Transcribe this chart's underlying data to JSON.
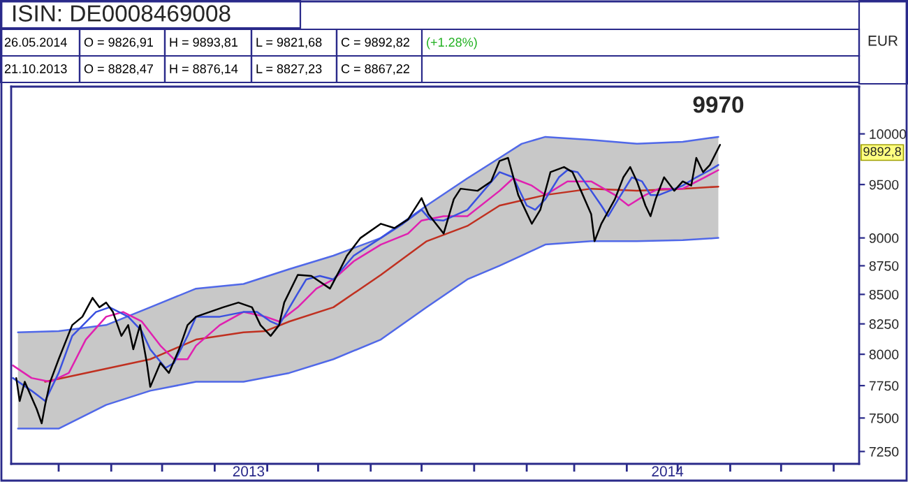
{
  "chart_data": {
    "type": "line",
    "title": "ISIN: DE0008469008",
    "ylabel": "EUR",
    "log": "y",
    "xlim": [
      "2013-04-03",
      "2014-08-16"
    ],
    "ylim": [
      7160,
      10490
    ],
    "yticks": [
      7250,
      7500,
      7750,
      8000,
      8250,
      8500,
      8750,
      9000,
      9500,
      10000
    ],
    "xticks": [
      {
        "value": "2013-05-01",
        "label": null
      },
      {
        "value": "2013-06-01",
        "label": null
      },
      {
        "value": "2013-07-01",
        "label": null
      },
      {
        "value": "2013-08-01",
        "label": null
      },
      {
        "value": "2013-09-01",
        "label": null
      },
      {
        "value": "2013-10-01",
        "label": null
      },
      {
        "value": "2013-11-01",
        "label": null
      },
      {
        "value": "2013-12-01",
        "label": null
      },
      {
        "value": "2014-01-01",
        "label": null
      },
      {
        "value": "2014-02-01",
        "label": null
      },
      {
        "value": "2014-03-01",
        "label": null
      },
      {
        "value": "2014-04-01",
        "label": null
      },
      {
        "value": "2014-05-01",
        "label": null
      },
      {
        "value": "2014-06-01",
        "label": null
      },
      {
        "value": "2014-07-01",
        "label": null
      },
      {
        "value": "2014-08-01",
        "label": null
      },
      {
        "value": "2013-08-21",
        "label": "2013"
      },
      {
        "value": "2014-04-25",
        "label": "2014"
      }
    ],
    "series": [
      {
        "color": "#5068e8",
        "x": [
          "2013-04-07",
          "2013-05-01",
          "2013-05-29",
          "2013-06-24",
          "2013-07-21",
          "2013-08-18",
          "2013-09-14",
          "2013-10-10",
          "2013-11-07",
          "2013-12-04",
          "2013-12-28",
          "2014-01-16",
          "2014-01-29",
          "2014-02-12",
          "2014-03-11",
          "2014-04-07",
          "2014-05-04",
          "2014-05-25"
        ],
        "values": [
          8180,
          8190,
          8240,
          8390,
          8550,
          8590,
          8720,
          8840,
          9000,
          9300,
          9560,
          9760,
          9900,
          9970,
          9940,
          9900,
          9920,
          9970
        ],
        "lower": [
          7420,
          7420,
          7600,
          7710,
          7780,
          7780,
          7850,
          7960,
          8120,
          8390,
          8630,
          8750,
          8840,
          8940,
          8970,
          8970,
          8980,
          9000
        ],
        "upper": [
          8180,
          8190,
          8240,
          8390,
          8550,
          8590,
          8720,
          8840,
          9000,
          9300,
          9560,
          9760,
          9900,
          9970,
          9940,
          9900,
          9920,
          9970
        ]
      },
      {
        "color": "#5068e8",
        "x": [
          "2013-04-07",
          "2013-05-01",
          "2013-05-29",
          "2013-06-24",
          "2013-07-21",
          "2013-08-18",
          "2013-09-14",
          "2013-10-10",
          "2013-11-07",
          "2013-12-04",
          "2013-12-28",
          "2014-01-16",
          "2014-01-29",
          "2014-02-12",
          "2014-03-11",
          "2014-04-07",
          "2014-05-04",
          "2014-05-25"
        ],
        "values": [
          7420,
          7420,
          7600,
          7710,
          7780,
          7780,
          7850,
          7960,
          8120,
          8390,
          8630,
          8750,
          8840,
          8940,
          8970,
          8970,
          8980,
          9000
        ]
      },
      {
        "color": "#c03020",
        "x": [
          "2013-04-23",
          "2013-06-24",
          "2013-07-21",
          "2013-08-18",
          "2013-08-31",
          "2013-09-14",
          "2013-10-10",
          "2013-11-07",
          "2013-12-04",
          "2013-12-28",
          "2014-01-16",
          "2014-02-12",
          "2014-03-11",
          "2014-04-07",
          "2014-05-04",
          "2014-05-25"
        ],
        "values": [
          7780,
          7960,
          8120,
          8180,
          8190,
          8270,
          8390,
          8670,
          8970,
          9110,
          9300,
          9400,
          9460,
          9440,
          9460,
          9480
        ]
      },
      {
        "color": "#e020b0",
        "x": [
          "2013-04-04",
          "2013-04-15",
          "2013-04-26",
          "2013-05-07",
          "2013-05-17",
          "2013-05-29",
          "2013-06-08",
          "2013-06-19",
          "2013-06-30",
          "2013-07-08",
          "2013-07-16",
          "2013-07-21",
          "2013-08-04",
          "2013-08-18",
          "2013-08-31",
          "2013-09-08",
          "2013-09-19",
          "2013-09-30",
          "2013-10-10",
          "2013-10-22",
          "2013-11-07",
          "2013-11-23",
          "2013-12-01",
          "2013-12-14",
          "2013-12-28",
          "2014-01-16",
          "2014-01-24",
          "2014-02-04",
          "2014-02-12",
          "2014-02-25",
          "2014-03-11",
          "2014-03-25",
          "2014-04-02",
          "2014-04-12",
          "2014-04-20",
          "2014-05-04",
          "2014-05-17",
          "2014-05-25"
        ],
        "values": [
          7910,
          7810,
          7780,
          7850,
          8120,
          8310,
          8350,
          8270,
          8070,
          7960,
          7960,
          8070,
          8240,
          8350,
          8310,
          8270,
          8390,
          8550,
          8630,
          8790,
          8940,
          9040,
          9160,
          9200,
          9200,
          9440,
          9560,
          9490,
          9400,
          9530,
          9530,
          9400,
          9300,
          9400,
          9460,
          9460,
          9570,
          9640
        ]
      },
      {
        "color": "#3a50e0",
        "x": [
          "2013-04-04",
          "2013-04-15",
          "2013-04-23",
          "2013-05-01",
          "2013-05-09",
          "2013-05-23",
          "2013-05-31",
          "2013-06-11",
          "2013-06-19",
          "2013-06-24",
          "2013-07-03",
          "2013-07-08",
          "2013-07-16",
          "2013-07-21",
          "2013-08-04",
          "2013-08-18",
          "2013-08-26",
          "2013-09-03",
          "2013-09-08",
          "2013-09-19",
          "2013-09-24",
          "2013-10-02",
          "2013-10-10",
          "2013-10-22",
          "2013-11-07",
          "2013-11-20",
          "2013-12-01",
          "2013-12-06",
          "2013-12-14",
          "2013-12-28",
          "2014-01-16",
          "2014-01-24",
          "2014-02-01",
          "2014-02-06",
          "2014-02-12",
          "2014-02-20",
          "2014-02-25",
          "2014-03-03",
          "2014-03-11",
          "2014-03-17",
          "2014-03-21",
          "2014-03-27",
          "2014-04-04",
          "2014-04-10",
          "2014-04-15",
          "2014-04-20",
          "2014-05-04",
          "2014-05-12",
          "2014-05-20",
          "2014-05-25"
        ],
        "values": [
          7810,
          7710,
          7630,
          7850,
          8150,
          8350,
          8390,
          8310,
          8190,
          8040,
          7890,
          7930,
          8150,
          8310,
          8310,
          8350,
          8350,
          8270,
          8240,
          8510,
          8630,
          8660,
          8630,
          8840,
          9000,
          9130,
          9260,
          9170,
          9160,
          9260,
          9620,
          9570,
          9300,
          9260,
          9360,
          9570,
          9640,
          9620,
          9440,
          9300,
          9200,
          9360,
          9570,
          9530,
          9400,
          9400,
          9490,
          9570,
          9640,
          9690
        ]
      },
      {
        "color": "#000000",
        "x": [
          "2013-04-06",
          "2013-04-08",
          "2013-04-11",
          "2013-04-18",
          "2013-04-21",
          "2013-04-23",
          "2013-04-26",
          "2013-05-01",
          "2013-05-09",
          "2013-05-15",
          "2013-05-21",
          "2013-05-25",
          "2013-05-29",
          "2013-06-02",
          "2013-06-07",
          "2013-06-11",
          "2013-06-14",
          "2013-06-18",
          "2013-06-22",
          "2013-06-24",
          "2013-06-30",
          "2013-07-05",
          "2013-07-11",
          "2013-07-16",
          "2013-07-21",
          "2013-07-29",
          "2013-08-06",
          "2013-08-15",
          "2013-08-23",
          "2013-08-28",
          "2013-09-03",
          "2013-09-08",
          "2013-09-11",
          "2013-09-19",
          "2013-09-27",
          "2013-10-08",
          "2013-10-14",
          "2013-10-18",
          "2013-10-26",
          "2013-11-07",
          "2013-11-15",
          "2013-11-23",
          "2013-12-01",
          "2013-12-05",
          "2013-12-14",
          "2013-12-20",
          "2013-12-24",
          "2014-01-03",
          "2014-01-11",
          "2014-01-16",
          "2014-01-21",
          "2014-01-27",
          "2014-02-04",
          "2014-02-09",
          "2014-02-15",
          "2014-02-23",
          "2014-02-28",
          "2014-03-05",
          "2014-03-11",
          "2014-03-13",
          "2014-03-17",
          "2014-03-25",
          "2014-03-30",
          "2014-04-03",
          "2014-04-07",
          "2014-04-12",
          "2014-04-15",
          "2014-04-18",
          "2014-04-23",
          "2014-04-29",
          "2014-05-04",
          "2014-05-09",
          "2014-05-12",
          "2014-05-16",
          "2014-05-20",
          "2014-05-26"
        ],
        "values": [
          7810,
          7630,
          7780,
          7570,
          7460,
          7600,
          7780,
          7960,
          8240,
          8310,
          8470,
          8390,
          8430,
          8350,
          8150,
          8240,
          8040,
          8240,
          7930,
          7740,
          7930,
          7850,
          8040,
          8240,
          8310,
          8350,
          8390,
          8430,
          8390,
          8240,
          8150,
          8240,
          8430,
          8670,
          8660,
          8550,
          8720,
          8840,
          9000,
          9130,
          9090,
          9170,
          9370,
          9220,
          9040,
          9360,
          9460,
          9440,
          9530,
          9730,
          9760,
          9400,
          9130,
          9260,
          9620,
          9670,
          9620,
          9440,
          9220,
          8970,
          9130,
          9360,
          9570,
          9670,
          9530,
          9300,
          9200,
          9360,
          9570,
          9440,
          9530,
          9490,
          9760,
          9620,
          9690,
          9890
        ]
      }
    ],
    "annotations": [
      "26.05.2014",
      "O = 9826,91",
      "H = 9893,81",
      "L = 9821,68",
      "C = 9892,82",
      "(+1.28%)",
      "21.10.2013",
      "O = 8828,47",
      "H = 8876,14",
      "L = 8827,23",
      "C = 8867,22",
      "9892,8",
      {
        "text": "9970",
        "x": "2014-05-25",
        "y": 9970
      }
    ]
  }
}
